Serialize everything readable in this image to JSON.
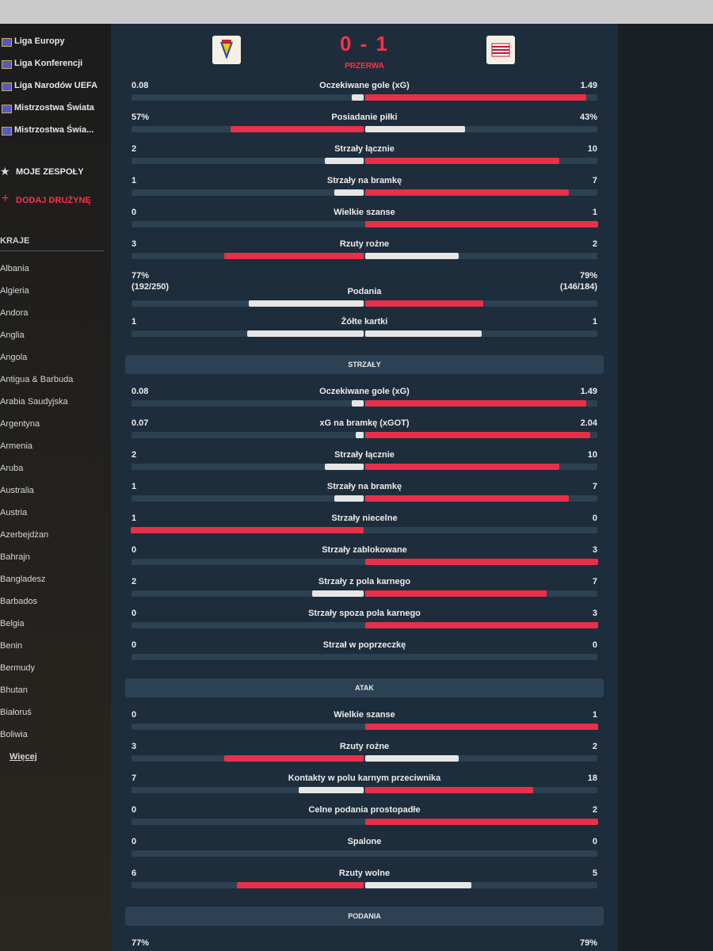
{
  "sidebar": {
    "leagues": [
      "Liga Europy",
      "Liga Konferencji",
      "Liga Narodów UEFA",
      "Mistrzostwa Świata",
      "Mistrzostwa Świa..."
    ],
    "my_teams": "MOJE ZESPOŁY",
    "add_team": "DODAJ DRUŻYNĘ",
    "countries_title": "KRAJE",
    "countries": [
      "Albania",
      "Algieria",
      "Andora",
      "Anglia",
      "Angola",
      "Antigua & Barbuda",
      "Arabia Saudyjska",
      "Argentyna",
      "Armenia",
      "Aruba",
      "Australia",
      "Austria",
      "Azerbejdżan",
      "Bahrajn",
      "Bangladesz",
      "Barbados",
      "Belgia",
      "Benin",
      "Bermudy",
      "Bhutan",
      "Białoruś",
      "Boliwia"
    ],
    "more": "Więcej"
  },
  "header": {
    "score": "0 - 1",
    "status": "PRZERWA"
  },
  "sections": [
    {
      "rows": [
        {
          "label": "Oczekiwane gole (xG)",
          "home": "0.08",
          "away": "1.49"
        },
        {
          "label": "Posiadanie piłki",
          "home": "57%",
          "away": "43%"
        },
        {
          "label": "Strzały łącznie",
          "home": "2",
          "away": "10"
        },
        {
          "label": "Strzały na bramkę",
          "home": "1",
          "away": "7"
        },
        {
          "label": "Wielkie szanse",
          "home": "0",
          "away": "1"
        },
        {
          "label": "Rzuty rożne",
          "home": "3",
          "away": "2"
        },
        {
          "label": "Podania",
          "home": "77%",
          "home_detail": "(192/250)",
          "away": "79%",
          "away_detail": "(146/184)"
        },
        {
          "label": "Żółte kartki",
          "home": "1",
          "away": "1"
        }
      ]
    },
    {
      "title": "STRZAŁY",
      "rows": [
        {
          "label": "Oczekiwane gole (xG)",
          "home": "0.08",
          "away": "1.49"
        },
        {
          "label": "xG na bramkę (xGOT)",
          "home": "0.07",
          "away": "2.04"
        },
        {
          "label": "Strzały łącznie",
          "home": "2",
          "away": "10"
        },
        {
          "label": "Strzały na bramkę",
          "home": "1",
          "away": "7"
        },
        {
          "label": "Strzały niecelne",
          "home": "1",
          "away": "0"
        },
        {
          "label": "Strzały zablokowane",
          "home": "0",
          "away": "3"
        },
        {
          "label": "Strzały z pola karnego",
          "home": "2",
          "away": "7"
        },
        {
          "label": "Strzały spoza pola karnego",
          "home": "0",
          "away": "3"
        },
        {
          "label": "Strzał w poprzeczkę",
          "home": "0",
          "away": "0"
        }
      ]
    },
    {
      "title": "ATAK",
      "rows": [
        {
          "label": "Wielkie szanse",
          "home": "0",
          "away": "1"
        },
        {
          "label": "Rzuty rożne",
          "home": "3",
          "away": "2"
        },
        {
          "label": "Kontakty w polu karnym przeciwnika",
          "home": "7",
          "away": "18"
        },
        {
          "label": "Celne podania prostopadłe",
          "home": "0",
          "away": "2"
        },
        {
          "label": "Spalone",
          "home": "0",
          "away": "0"
        },
        {
          "label": "Rzuty wolne",
          "home": "6",
          "away": "5"
        }
      ]
    },
    {
      "title": "PODANIA",
      "rows": [
        {
          "home": "77%",
          "away": "79%"
        }
      ]
    }
  ]
}
